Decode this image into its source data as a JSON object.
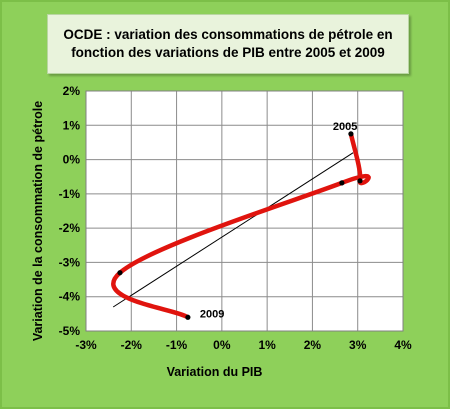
{
  "chart_data": {
    "type": "line",
    "title": "OCDE : variation des consommations de pétrole en fonction des variations de PIB entre  2005 et 2009",
    "xlabel": "Variation du PIB",
    "ylabel": "Variation de la consommation de pétrole",
    "xlim": [
      -3,
      4
    ],
    "ylim": [
      -5,
      2
    ],
    "x_ticks": [
      "-3%",
      "-2%",
      "-1%",
      "0%",
      "1%",
      "2%",
      "3%",
      "4%"
    ],
    "y_ticks": [
      "2%",
      "1%",
      "0%",
      "-1%",
      "-2%",
      "-3%",
      "-4%",
      "-5%"
    ],
    "grid": true,
    "series": [
      {
        "color": "#e0140e",
        "points": [
          {
            "x": 2.85,
            "y": 0.75,
            "label": "2005"
          },
          {
            "x": 3.05,
            "y": -0.62
          },
          {
            "x": 2.65,
            "y": -0.68
          },
          {
            "x": -2.25,
            "y": -3.3
          },
          {
            "x": -0.75,
            "y": -4.6,
            "label": "2009"
          }
        ]
      }
    ],
    "trendline": {
      "color": "#000000",
      "x": [
        -2.4,
        2.9
      ],
      "y": [
        -4.3,
        0.2
      ]
    }
  }
}
